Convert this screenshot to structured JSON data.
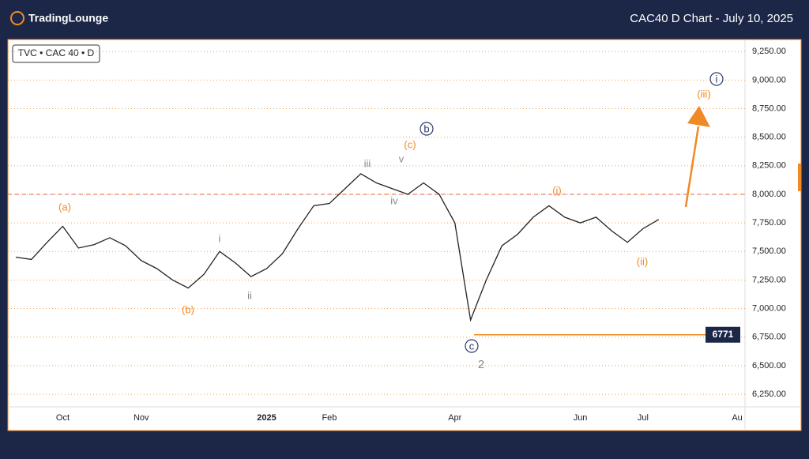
{
  "header": {
    "logo": "TradingLounge",
    "title": "CAC40 D Chart - July 10, 2025"
  },
  "chart_data": {
    "type": "line",
    "symbol": "TVC • CAC 40 • D",
    "categories": [
      null,
      null,
      null,
      "Oct",
      null,
      null,
      null,
      null,
      "Nov",
      null,
      null,
      null,
      null,
      null,
      null,
      null,
      "2025",
      null,
      null,
      null,
      "Feb",
      null,
      null,
      null,
      null,
      null,
      null,
      null,
      "Apr",
      null,
      null,
      null,
      null,
      null,
      null,
      null,
      "Jun",
      null,
      null,
      null,
      "Jul",
      null,
      null,
      null,
      null,
      null,
      "Au"
    ],
    "series": [
      {
        "name": "CAC 40",
        "color": "#222222",
        "values": [
          7450,
          7430,
          7580,
          7720,
          7530,
          7560,
          7620,
          7550,
          7420,
          7350,
          7250,
          7180,
          7300,
          7500,
          7400,
          7280,
          7350,
          7480,
          7700,
          7900,
          7920,
          8050,
          8180,
          8100,
          8050,
          8000,
          8100,
          8000,
          7750,
          6900,
          7250,
          7550,
          7650,
          7800,
          7900,
          7800,
          7750,
          7800,
          7680,
          7580,
          7700,
          7780,
          null,
          null,
          null,
          null,
          null
        ]
      }
    ],
    "ylim": [
      6140,
      9355
    ],
    "yticks": [
      {
        "value": 6250,
        "label": "6,250.00"
      },
      {
        "value": 6500,
        "label": "6,500.00"
      },
      {
        "value": 6750,
        "label": "6,750.00"
      },
      {
        "value": 7000,
        "label": "7,000.00"
      },
      {
        "value": 7250,
        "label": "7,250.00"
      },
      {
        "value": 7500,
        "label": "7,500.00"
      },
      {
        "value": 7750,
        "label": "7,750.00"
      },
      {
        "value": 8000,
        "label": "8,000.00"
      },
      {
        "value": 8250,
        "label": "8,250.00"
      },
      {
        "value": 8500,
        "label": "8,500.00"
      },
      {
        "value": 8750,
        "label": "8,750.00"
      },
      {
        "value": 9000,
        "label": "9,000.00"
      },
      {
        "value": 9250,
        "label": "9,250.00"
      }
    ],
    "grid": true,
    "grid_color": "#f5a04a",
    "reference_line": 8000,
    "reference_color": "#e0604a",
    "price_line": 6771,
    "price_color": "#f08a24",
    "annotations": [
      {
        "text": "(a)",
        "color": "#f08a24"
      },
      {
        "text": "(b)",
        "color": "#f08a24"
      },
      {
        "text": "(c)",
        "color": "#f08a24"
      },
      {
        "text": "(i)",
        "color": "#f08a24"
      },
      {
        "text": "(ii)",
        "color": "#f08a24"
      },
      {
        "text": "(iii)",
        "color": "#f08a24"
      },
      {
        "text": "i",
        "color": "#888888"
      },
      {
        "text": "ii",
        "color": "#888888"
      },
      {
        "text": "iii",
        "color": "#888888"
      },
      {
        "text": "iv",
        "color": "#888888"
      },
      {
        "text": "v",
        "color": "#888888"
      },
      {
        "text": "2",
        "color": "#888888"
      },
      {
        "text": "b",
        "color": "#2a3a6e",
        "circled": true
      },
      {
        "text": "c",
        "color": "#2a3a6e",
        "circled": true
      },
      {
        "text": "i",
        "color": "#2a3a6e",
        "circled": true
      }
    ]
  }
}
